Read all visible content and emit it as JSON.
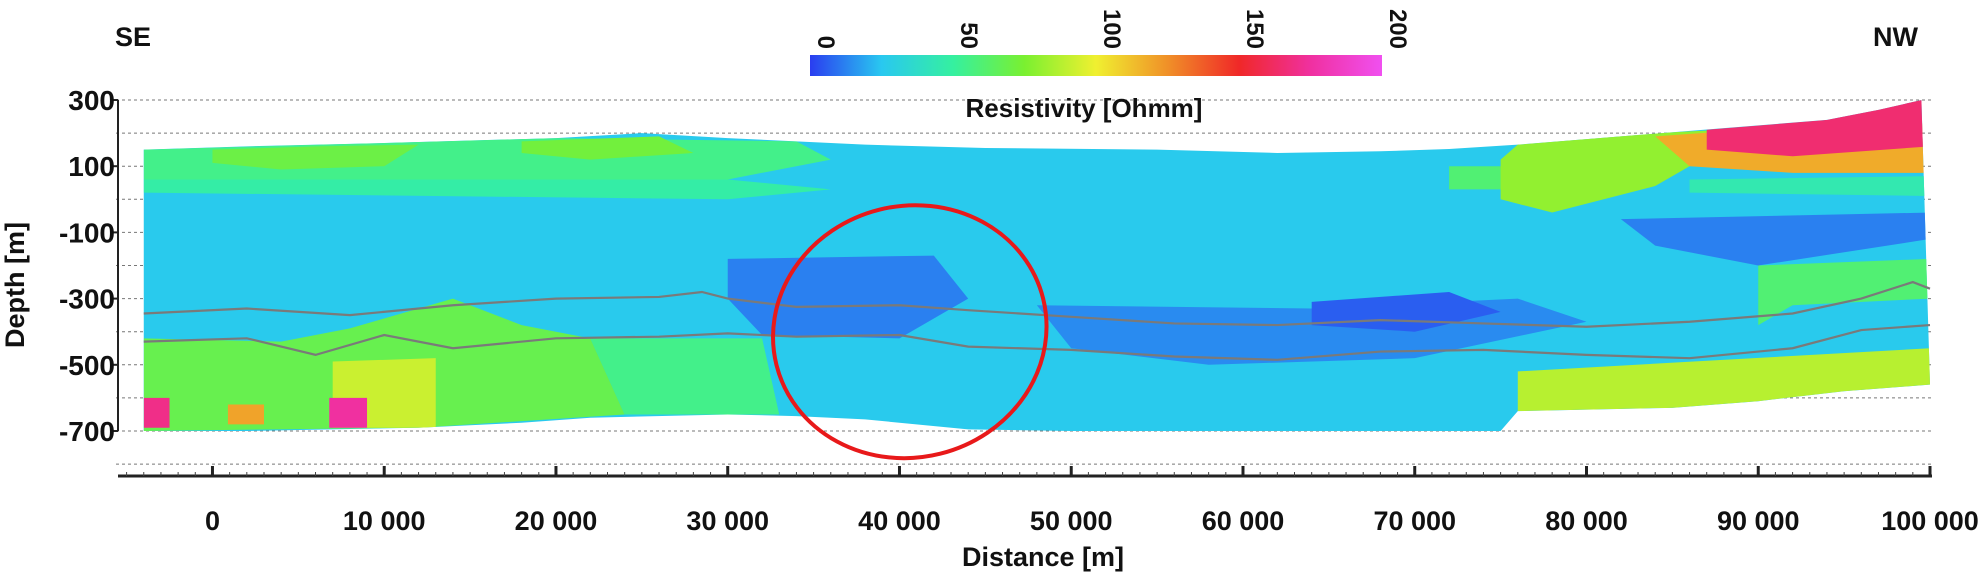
{
  "chart_data": {
    "type": "heatmap",
    "orientation_labels": {
      "left": "SE",
      "right": "NW"
    },
    "xlabel": "Distance [m]",
    "ylabel": "Depth [m]",
    "xlim": [
      -5500,
      100000
    ],
    "ylim": [
      -700,
      300
    ],
    "x_ticks": [
      {
        "value": 0,
        "label": "0"
      },
      {
        "value": 10000,
        "label": "10 000"
      },
      {
        "value": 20000,
        "label": "20 000"
      },
      {
        "value": 30000,
        "label": "30 000"
      },
      {
        "value": 40000,
        "label": "40 000"
      },
      {
        "value": 50000,
        "label": "50 000"
      },
      {
        "value": 60000,
        "label": "60 000"
      },
      {
        "value": 70000,
        "label": "70 000"
      },
      {
        "value": 80000,
        "label": "80 000"
      },
      {
        "value": 90000,
        "label": "90 000"
      },
      {
        "value": 100000,
        "label": "100 000"
      }
    ],
    "y_ticks": [
      {
        "value": 300,
        "label": "300"
      },
      {
        "value": 100,
        "label": "100"
      },
      {
        "value": -100,
        "label": "-100"
      },
      {
        "value": -300,
        "label": "-300"
      },
      {
        "value": -500,
        "label": "-500"
      },
      {
        "value": -700,
        "label": "-700"
      }
    ],
    "y_gridlines": [
      300,
      200,
      100,
      0,
      -100,
      -200,
      -300,
      -400,
      -500,
      -600,
      -700,
      -800
    ],
    "grid": true,
    "colorbar": {
      "title": "Resistivity [Ohmm]",
      "min": 0,
      "max": 200,
      "ticks": [
        "0",
        "50",
        "100",
        "150",
        "200"
      ],
      "stops": [
        "#2a3df0",
        "#29c8f0",
        "#35f0a0",
        "#7af030",
        "#f0f030",
        "#f09028",
        "#f02828",
        "#f030a0",
        "#f050f0"
      ]
    },
    "top_surface": [
      [
        -4000,
        150
      ],
      [
        2000,
        160
      ],
      [
        10000,
        170
      ],
      [
        20000,
        185
      ],
      [
        25000,
        200
      ],
      [
        30000,
        185
      ],
      [
        38000,
        165
      ],
      [
        45000,
        155
      ],
      [
        55000,
        150
      ],
      [
        62000,
        140
      ],
      [
        68000,
        145
      ],
      [
        72000,
        152
      ],
      [
        76000,
        165
      ],
      [
        82000,
        190
      ],
      [
        88000,
        215
      ],
      [
        94000,
        240
      ],
      [
        97000,
        270
      ],
      [
        99500,
        300
      ]
    ],
    "bottom_surface": [
      [
        -4000,
        -700
      ],
      [
        2000,
        -700
      ],
      [
        12000,
        -690
      ],
      [
        18000,
        -675
      ],
      [
        22000,
        -660
      ],
      [
        30000,
        -650
      ],
      [
        34000,
        -655
      ],
      [
        38000,
        -665
      ],
      [
        44000,
        -695
      ],
      [
        50000,
        -700
      ],
      [
        62000,
        -700
      ],
      [
        75000,
        -700
      ],
      [
        76000,
        -640
      ],
      [
        85000,
        -630
      ],
      [
        90000,
        -610
      ],
      [
        95000,
        -580
      ],
      [
        100000,
        -560
      ]
    ],
    "regions": [
      {
        "resistivity": 55,
        "polygon": [
          [
            -4000,
            150
          ],
          [
            20000,
            185
          ],
          [
            34000,
            175
          ],
          [
            36000,
            120
          ],
          [
            30000,
            60
          ],
          [
            20000,
            40
          ],
          [
            10000,
            50
          ],
          [
            -4000,
            60
          ]
        ]
      },
      {
        "resistivity": 70,
        "polygon": [
          [
            0,
            150
          ],
          [
            6000,
            160
          ],
          [
            12000,
            165
          ],
          [
            10000,
            100
          ],
          [
            4000,
            90
          ],
          [
            0,
            110
          ]
        ]
      },
      {
        "resistivity": 72,
        "polygon": [
          [
            18000,
            175
          ],
          [
            26000,
            190
          ],
          [
            28000,
            140
          ],
          [
            22000,
            120
          ],
          [
            18000,
            140
          ]
        ]
      },
      {
        "resistivity": 48,
        "polygon": [
          [
            -4000,
            60
          ],
          [
            30000,
            60
          ],
          [
            36000,
            30
          ],
          [
            30000,
            0
          ],
          [
            -4000,
            20
          ]
        ]
      },
      {
        "resistivity": 68,
        "polygon": [
          [
            -4000,
            -420
          ],
          [
            4000,
            -430
          ],
          [
            8000,
            -390
          ],
          [
            14000,
            -300
          ],
          [
            18000,
            -380
          ],
          [
            22000,
            -420
          ],
          [
            24000,
            -650
          ],
          [
            12000,
            -690
          ],
          [
            -4000,
            -700
          ]
        ]
      },
      {
        "resistivity": 55,
        "polygon": [
          [
            22000,
            -420
          ],
          [
            32000,
            -420
          ],
          [
            33000,
            -650
          ],
          [
            24000,
            -650
          ]
        ]
      },
      {
        "resistivity": 92,
        "polygon": [
          [
            7000,
            -490
          ],
          [
            13000,
            -480
          ],
          [
            13000,
            -690
          ],
          [
            7000,
            -690
          ]
        ]
      },
      {
        "resistivity": 170,
        "polygon": [
          [
            -4000,
            -600
          ],
          [
            -2500,
            -600
          ],
          [
            -2500,
            -690
          ],
          [
            -4000,
            -690
          ]
        ]
      },
      {
        "resistivity": 175,
        "polygon": [
          [
            6800,
            -600
          ],
          [
            9000,
            -600
          ],
          [
            9000,
            -690
          ],
          [
            6800,
            -690
          ]
        ]
      },
      {
        "resistivity": 120,
        "polygon": [
          [
            900,
            -620
          ],
          [
            3000,
            -620
          ],
          [
            3000,
            -680
          ],
          [
            900,
            -680
          ]
        ]
      },
      {
        "resistivity": 60,
        "polygon": [
          [
            72000,
            100
          ],
          [
            76000,
            100
          ],
          [
            76000,
            30
          ],
          [
            72000,
            30
          ]
        ]
      },
      {
        "resistivity": 80,
        "polygon": [
          [
            76000,
            165
          ],
          [
            84000,
            200
          ],
          [
            88000,
            210
          ],
          [
            86000,
            100
          ],
          [
            84000,
            40
          ],
          [
            78000,
            -40
          ],
          [
            75000,
            0
          ],
          [
            75000,
            120
          ]
        ]
      },
      {
        "resistivity": 118,
        "polygon": [
          [
            84000,
            190
          ],
          [
            92000,
            220
          ],
          [
            100000,
            230
          ],
          [
            100000,
            80
          ],
          [
            92000,
            80
          ],
          [
            86000,
            100
          ]
        ]
      },
      {
        "resistivity": 165,
        "polygon": [
          [
            87000,
            210
          ],
          [
            94000,
            240
          ],
          [
            99500,
            300
          ],
          [
            100000,
            300
          ],
          [
            100000,
            160
          ],
          [
            92000,
            130
          ],
          [
            87000,
            150
          ]
        ]
      },
      {
        "resistivity": 45,
        "polygon": [
          [
            86000,
            60
          ],
          [
            100000,
            70
          ],
          [
            100000,
            10
          ],
          [
            86000,
            20
          ]
        ]
      },
      {
        "resistivity": 12,
        "polygon": [
          [
            30000,
            -180
          ],
          [
            42000,
            -170
          ],
          [
            44000,
            -300
          ],
          [
            40000,
            -420
          ],
          [
            32000,
            -410
          ],
          [
            30000,
            -300
          ]
        ]
      },
      {
        "resistivity": 14,
        "polygon": [
          [
            48000,
            -320
          ],
          [
            64000,
            -330
          ],
          [
            76000,
            -300
          ],
          [
            80000,
            -370
          ],
          [
            70000,
            -480
          ],
          [
            58000,
            -500
          ],
          [
            50000,
            -450
          ]
        ]
      },
      {
        "resistivity": 6,
        "polygon": [
          [
            64000,
            -310
          ],
          [
            72000,
            -280
          ],
          [
            75000,
            -340
          ],
          [
            70000,
            -400
          ],
          [
            64000,
            -380
          ]
        ]
      },
      {
        "resistivity": 12,
        "polygon": [
          [
            82000,
            -60
          ],
          [
            100000,
            -40
          ],
          [
            100000,
            -120
          ],
          [
            90000,
            -200
          ],
          [
            84000,
            -140
          ]
        ]
      },
      {
        "resistivity": 88,
        "polygon": [
          [
            76000,
            -520
          ],
          [
            100000,
            -450
          ],
          [
            100000,
            -560
          ],
          [
            95000,
            -580
          ],
          [
            90000,
            -610
          ],
          [
            85000,
            -630
          ],
          [
            76000,
            -640
          ]
        ]
      },
      {
        "resistivity": 60,
        "polygon": [
          [
            90000,
            -200
          ],
          [
            100000,
            -180
          ],
          [
            100000,
            -300
          ],
          [
            92000,
            -320
          ],
          [
            90000,
            -380
          ]
        ]
      }
    ],
    "series": [
      {
        "values": [
          [
            -4000,
            -345
          ],
          [
            2000,
            -330
          ],
          [
            8000,
            -350
          ],
          [
            14000,
            -320
          ],
          [
            20000,
            -300
          ],
          [
            26000,
            -295
          ],
          [
            28500,
            -280
          ],
          [
            30000,
            -300
          ],
          [
            34000,
            -325
          ],
          [
            40000,
            -320
          ],
          [
            44000,
            -335
          ],
          [
            50000,
            -355
          ],
          [
            56000,
            -375
          ],
          [
            62000,
            -380
          ],
          [
            68000,
            -365
          ],
          [
            74000,
            -375
          ],
          [
            80000,
            -385
          ],
          [
            86000,
            -370
          ],
          [
            92000,
            -345
          ],
          [
            96000,
            -300
          ],
          [
            99000,
            -250
          ],
          [
            100000,
            -270
          ]
        ]
      },
      {
        "values": [
          [
            -4000,
            -430
          ],
          [
            2000,
            -420
          ],
          [
            6000,
            -470
          ],
          [
            10000,
            -410
          ],
          [
            14000,
            -450
          ],
          [
            20000,
            -420
          ],
          [
            26000,
            -415
          ],
          [
            30000,
            -405
          ],
          [
            34000,
            -415
          ],
          [
            40000,
            -410
          ],
          [
            44000,
            -445
          ],
          [
            50000,
            -455
          ],
          [
            56000,
            -475
          ],
          [
            62000,
            -485
          ],
          [
            68000,
            -460
          ],
          [
            74000,
            -455
          ],
          [
            80000,
            -470
          ],
          [
            86000,
            -480
          ],
          [
            92000,
            -450
          ],
          [
            96000,
            -395
          ],
          [
            100000,
            -380
          ]
        ]
      }
    ],
    "highlight_ellipse": {
      "center": [
        40600,
        -400
      ],
      "radius_x": 8000,
      "radius_y": 380
    }
  }
}
